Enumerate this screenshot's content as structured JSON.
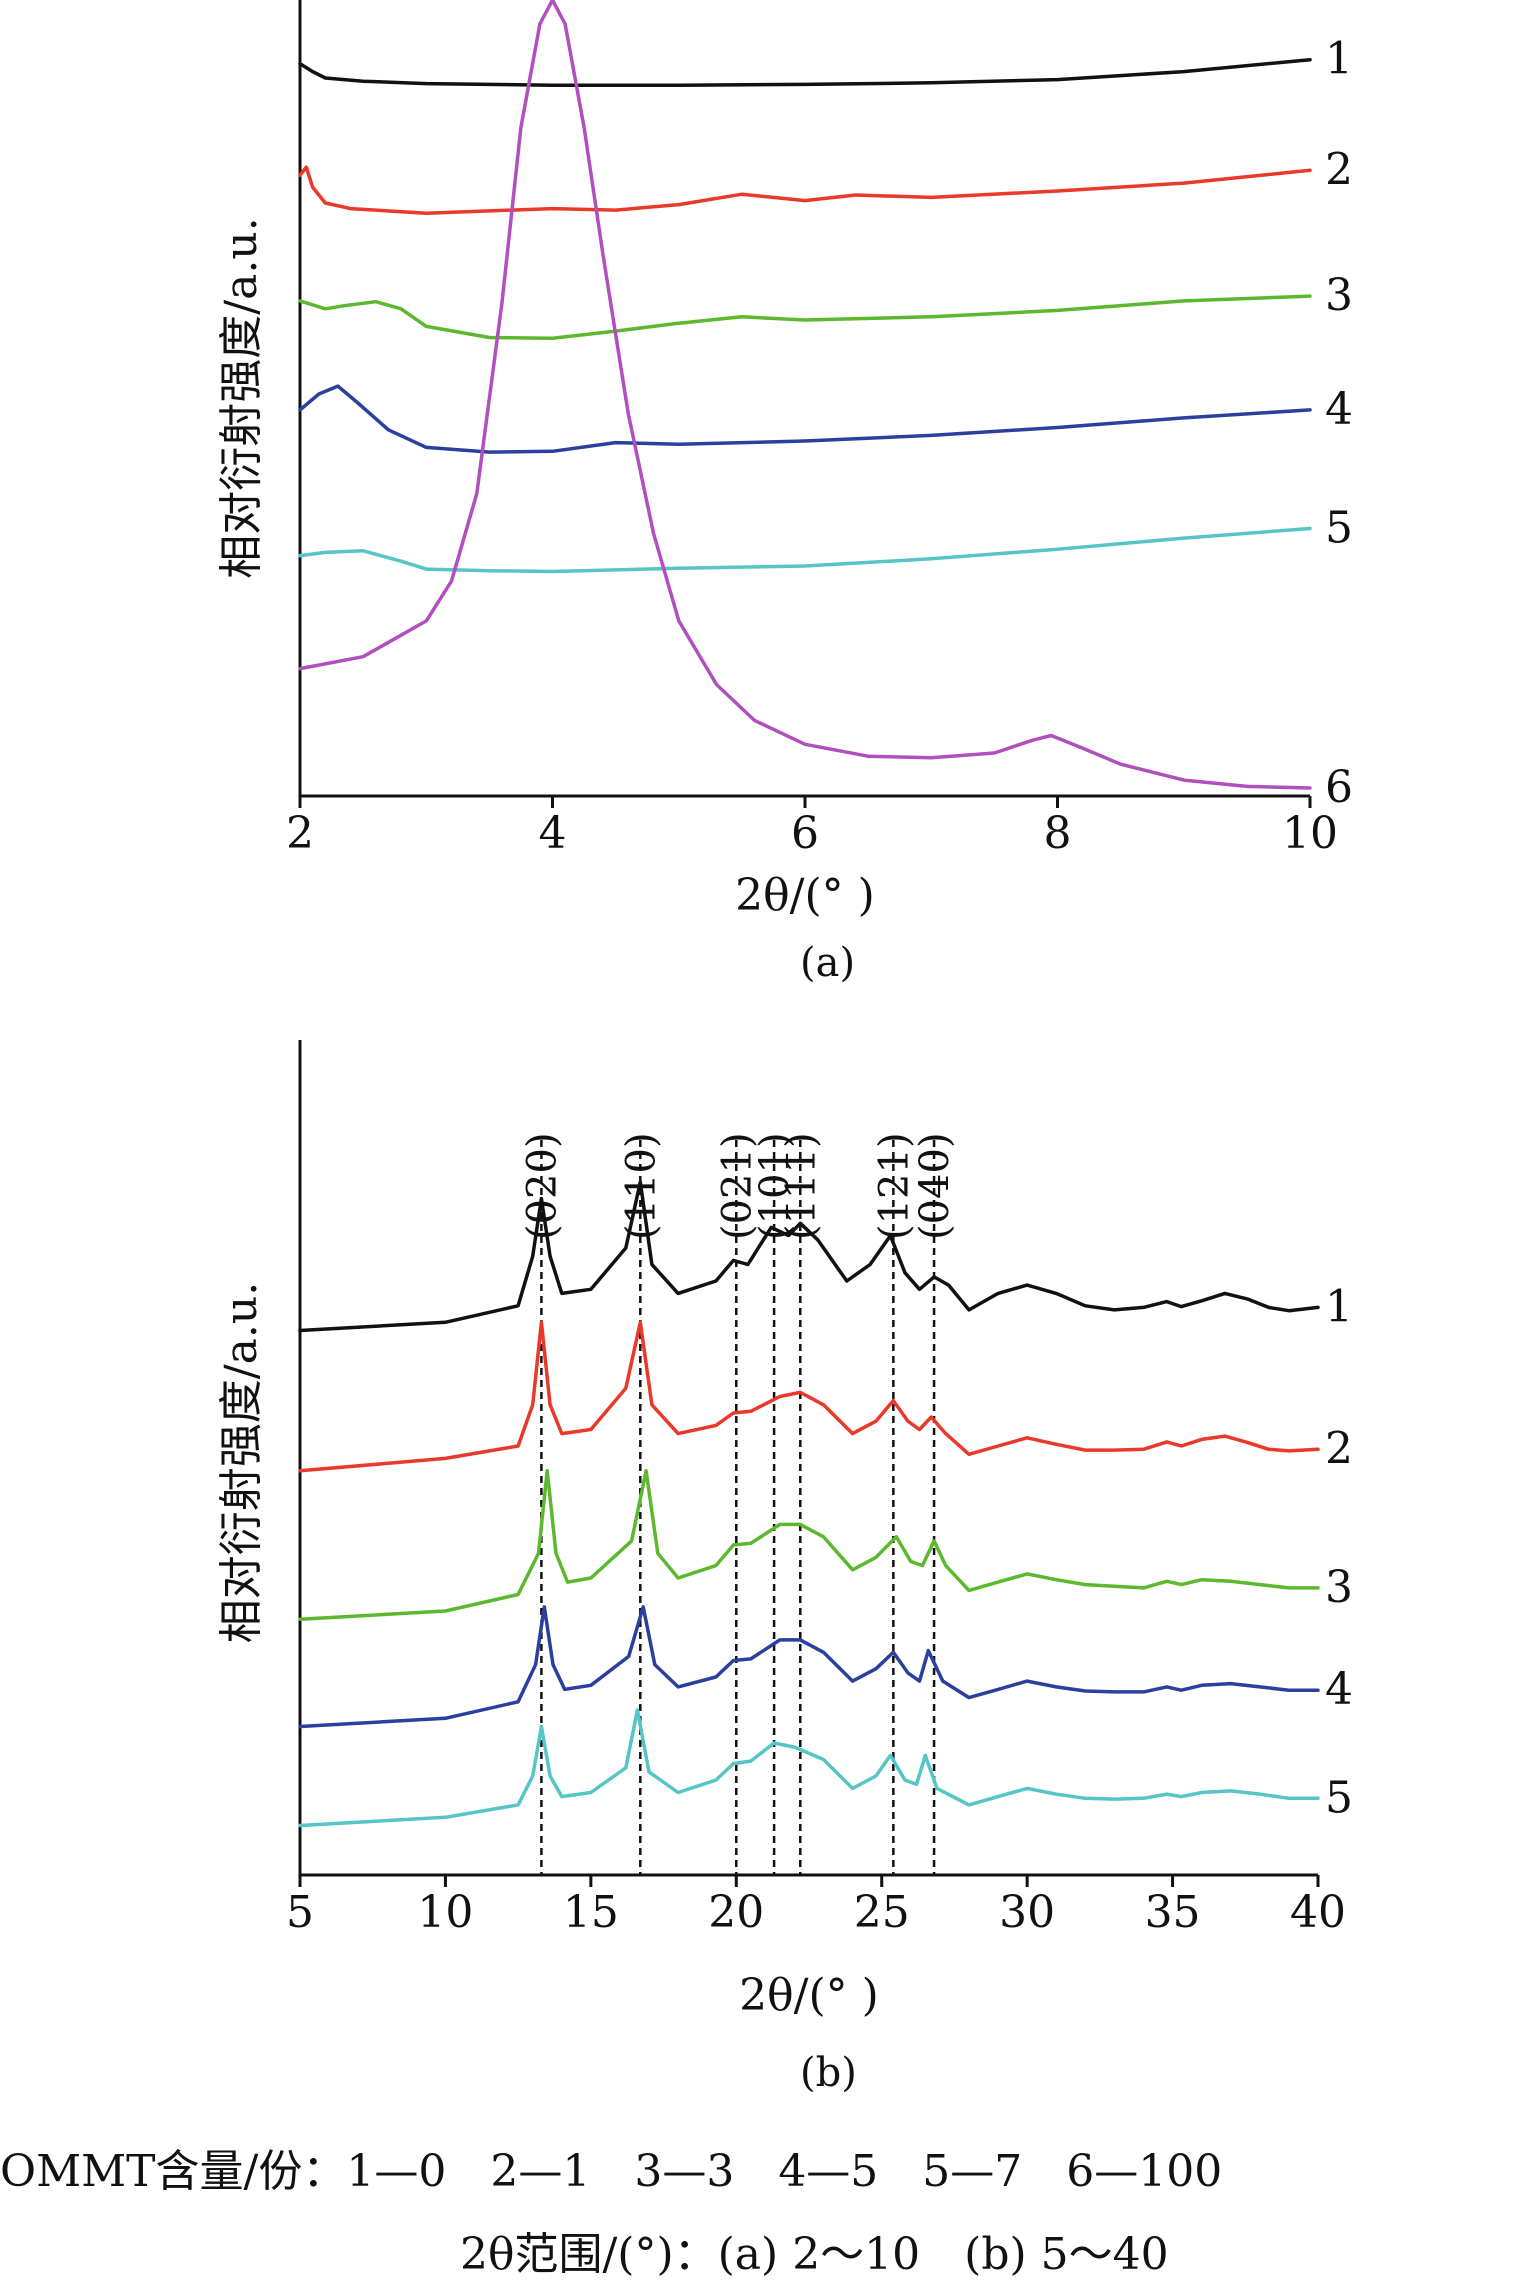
{
  "chart_data": [
    {
      "type": "line",
      "panel_label": "(a)",
      "xlabel": "2θ/(°  )",
      "ylabel": "相对衍射强度/a.u.",
      "xlim": [
        2,
        10
      ],
      "ylim": [
        0,
        100
      ],
      "xticks": [
        2,
        4,
        6,
        8,
        10
      ],
      "grid": false,
      "legend": "curve numbers at right end",
      "series": [
        {
          "name": "1",
          "color": "#111111",
          "x": [
            2,
            2.1,
            2.2,
            2.5,
            3,
            4,
            5,
            6,
            7,
            8,
            9,
            10
          ],
          "y": [
            92,
            91,
            90.2,
            89.8,
            89.5,
            89.3,
            89.3,
            89.4,
            89.6,
            90,
            91,
            92.5
          ]
        },
        {
          "name": "2",
          "color": "#e8392b",
          "x": [
            2,
            2.05,
            2.1,
            2.2,
            2.4,
            3,
            3.5,
            4,
            4.5,
            5,
            5.5,
            6,
            6.4,
            7,
            8,
            9,
            10
          ],
          "y": [
            78,
            79,
            76.5,
            74.5,
            73.8,
            73.2,
            73.5,
            73.8,
            73.6,
            74.3,
            75.6,
            74.8,
            75.5,
            75.2,
            76,
            77,
            78.6
          ]
        },
        {
          "name": "3",
          "color": "#5cb82e",
          "x": [
            2,
            2.2,
            2.35,
            2.6,
            2.8,
            3,
            3.5,
            4,
            4.5,
            5,
            5.5,
            6,
            7,
            8,
            9,
            10
          ],
          "y": [
            62.2,
            61.2,
            61.6,
            62.1,
            61.2,
            59,
            57.6,
            57.5,
            58.4,
            59.4,
            60.2,
            59.8,
            60.2,
            61,
            62.2,
            62.8
          ]
        },
        {
          "name": "4",
          "color": "#2b3f9e",
          "x": [
            2,
            2.15,
            2.3,
            2.45,
            2.7,
            3,
            3.5,
            4,
            4.5,
            5,
            6,
            7,
            8,
            9,
            10
          ],
          "y": [
            48.5,
            50.5,
            51.5,
            49.5,
            46,
            43.8,
            43.2,
            43.3,
            44.4,
            44.2,
            44.6,
            45.3,
            46.3,
            47.5,
            48.5
          ]
        },
        {
          "name": "5",
          "color": "#56c5c8",
          "x": [
            2,
            2.2,
            2.5,
            2.8,
            3,
            3.5,
            4,
            5,
            6,
            7,
            8,
            9,
            10
          ],
          "y": [
            30.2,
            30.6,
            30.8,
            29.5,
            28.5,
            28.3,
            28.2,
            28.6,
            28.9,
            29.8,
            31,
            32.4,
            33.6
          ]
        },
        {
          "name": "6",
          "color": "#b04fbd",
          "x": [
            2,
            2.5,
            3,
            3.2,
            3.4,
            3.6,
            3.75,
            3.9,
            4.0,
            4.1,
            4.25,
            4.4,
            4.6,
            4.8,
            5,
            5.3,
            5.6,
            6,
            6.5,
            7,
            7.5,
            7.8,
            7.95,
            8.2,
            8.5,
            9,
            9.5,
            10
          ],
          "y": [
            16,
            17.5,
            22,
            27,
            38,
            62,
            84,
            97,
            100,
            97,
            84,
            68,
            48,
            33,
            22,
            14,
            9.5,
            6.5,
            5,
            4.8,
            5.4,
            7,
            7.6,
            6,
            4,
            2,
            1.2,
            1
          ]
        }
      ]
    },
    {
      "type": "line",
      "panel_label": "(b)",
      "xlabel": "2θ/(°  )",
      "ylabel": "相对衍射强度/a.u.",
      "xlim": [
        5,
        40
      ],
      "ylim": [
        0,
        100
      ],
      "xticks": [
        5,
        10,
        15,
        20,
        25,
        30,
        35,
        40
      ],
      "grid": false,
      "legend": "curve numbers at right end",
      "annotations": [
        {
          "label": "(020)",
          "x": 13.3
        },
        {
          "label": "(110)",
          "x": 16.7
        },
        {
          "label": "(021)",
          "x": 20.0
        },
        {
          "label": "(101)",
          "x": 21.3
        },
        {
          "label": "(111)",
          "x": 22.2
        },
        {
          "label": "(121)",
          "x": 25.4
        },
        {
          "label": "(040)",
          "x": 26.8
        }
      ],
      "series": [
        {
          "name": "1",
          "color": "#111111",
          "x": [
            5,
            10,
            12.5,
            13.0,
            13.3,
            13.6,
            14,
            15,
            16.2,
            16.7,
            17.1,
            18,
            19.3,
            19.9,
            20.4,
            21.2,
            21.8,
            22.2,
            22.8,
            23.8,
            24.6,
            25.3,
            25.8,
            26.3,
            26.8,
            27.3,
            28,
            29,
            30,
            31,
            32,
            33,
            34,
            34.8,
            35.3,
            36,
            36.8,
            37.6,
            38.3,
            39,
            40
          ],
          "y": [
            66,
            67,
            69,
            75,
            82,
            75,
            70.5,
            71,
            76,
            84,
            74,
            70.5,
            72,
            74.5,
            74,
            78.5,
            77.5,
            79,
            77,
            72,
            74,
            77.5,
            73,
            71,
            72.5,
            71.5,
            68.5,
            70.5,
            71.5,
            70.5,
            69,
            68.5,
            68.8,
            69.5,
            68.9,
            69.6,
            70.5,
            69.8,
            68.8,
            68.4,
            68.8
          ]
        },
        {
          "name": "2",
          "color": "#e8392b",
          "x": [
            5,
            10,
            12.5,
            13.0,
            13.3,
            13.6,
            14,
            15,
            16.2,
            16.7,
            17.1,
            18,
            19.3,
            19.9,
            20.5,
            21.5,
            22.2,
            23,
            24,
            24.8,
            25.4,
            25.9,
            26.3,
            26.7,
            27.2,
            28,
            29,
            30,
            31,
            32,
            33,
            34,
            34.8,
            35.3,
            36,
            36.8,
            37.6,
            38.3,
            39,
            40
          ],
          "y": [
            49,
            50.5,
            52,
            57,
            67,
            57,
            53.5,
            54,
            59,
            67,
            57,
            53.5,
            54.5,
            56,
            56.2,
            58,
            58.5,
            57,
            53.5,
            55,
            57.5,
            55,
            54,
            55.5,
            53.5,
            51,
            52,
            53,
            52.2,
            51.5,
            51.5,
            51.6,
            52.5,
            52,
            52.8,
            53.2,
            52.4,
            51.6,
            51.4,
            51.6
          ]
        },
        {
          "name": "3",
          "color": "#5cb82e",
          "x": [
            5,
            10,
            12.5,
            13.2,
            13.5,
            13.8,
            14.2,
            15,
            16.4,
            16.9,
            17.3,
            18,
            19.3,
            19.9,
            20.5,
            21.5,
            22.2,
            23,
            24,
            24.8,
            25.5,
            26,
            26.4,
            26.8,
            27.2,
            28,
            29,
            30,
            31,
            32,
            33,
            34,
            34.8,
            35.3,
            36,
            37,
            38,
            39,
            40
          ],
          "y": [
            31,
            32,
            34,
            39,
            49,
            39,
            35.5,
            36,
            40.5,
            49,
            39,
            36,
            37.5,
            40,
            40.2,
            42.5,
            42.5,
            41,
            37,
            38.5,
            41,
            38,
            37.5,
            40.5,
            37.5,
            34.5,
            35.5,
            36.5,
            35.8,
            35.2,
            35,
            34.8,
            35.6,
            35.2,
            35.8,
            35.6,
            35.2,
            34.8,
            34.8
          ]
        },
        {
          "name": "4",
          "color": "#2b3f9e",
          "x": [
            5,
            10,
            12.5,
            13.1,
            13.4,
            13.7,
            14.1,
            15,
            16.3,
            16.8,
            17.2,
            18,
            19.3,
            19.9,
            20.5,
            21.5,
            22.2,
            23,
            24,
            24.8,
            25.4,
            25.9,
            26.3,
            26.6,
            27.1,
            28,
            29,
            30,
            31,
            32,
            33,
            34,
            34.8,
            35.3,
            36,
            37,
            38,
            39,
            40
          ],
          "y": [
            18,
            19,
            21,
            25.5,
            32.5,
            25.5,
            22.5,
            23,
            26.5,
            32.5,
            25.5,
            22.8,
            24,
            26,
            26.2,
            28.5,
            28.5,
            27,
            23.5,
            25,
            27,
            24.5,
            23.5,
            27.2,
            23.5,
            21.5,
            22.5,
            23.5,
            22.8,
            22.3,
            22.2,
            22.2,
            22.8,
            22.4,
            23,
            23.2,
            22.8,
            22.4,
            22.4
          ]
        },
        {
          "name": "5",
          "color": "#56c5c8",
          "x": [
            5,
            10,
            12.5,
            13.0,
            13.3,
            13.6,
            14,
            15,
            16.2,
            16.6,
            17,
            18,
            19.3,
            19.9,
            20.5,
            21.3,
            22,
            23,
            24,
            24.8,
            25.3,
            25.8,
            26.2,
            26.5,
            26.9,
            28,
            29,
            30,
            31,
            32,
            33,
            34,
            34.8,
            35.3,
            36,
            37,
            38,
            39,
            40
          ],
          "y": [
            6,
            7,
            8.5,
            12,
            18,
            12,
            9.5,
            10,
            13,
            20,
            12.5,
            10,
            11.5,
            13.5,
            13.8,
            16,
            15.5,
            14,
            10.5,
            12,
            14.5,
            11.5,
            11,
            14.5,
            10.5,
            8.5,
            9.5,
            10.5,
            9.8,
            9.3,
            9.2,
            9.3,
            9.8,
            9.5,
            10,
            10.2,
            9.8,
            9.3,
            9.3
          ]
        }
      ]
    }
  ],
  "legend_note": {
    "line1": "OMMT含量/份：1—0　2—1　3—3　4—5　5—7　6—100",
    "line2": "2θ范围/(°)：(a) 2～10　(b) 5～40"
  }
}
